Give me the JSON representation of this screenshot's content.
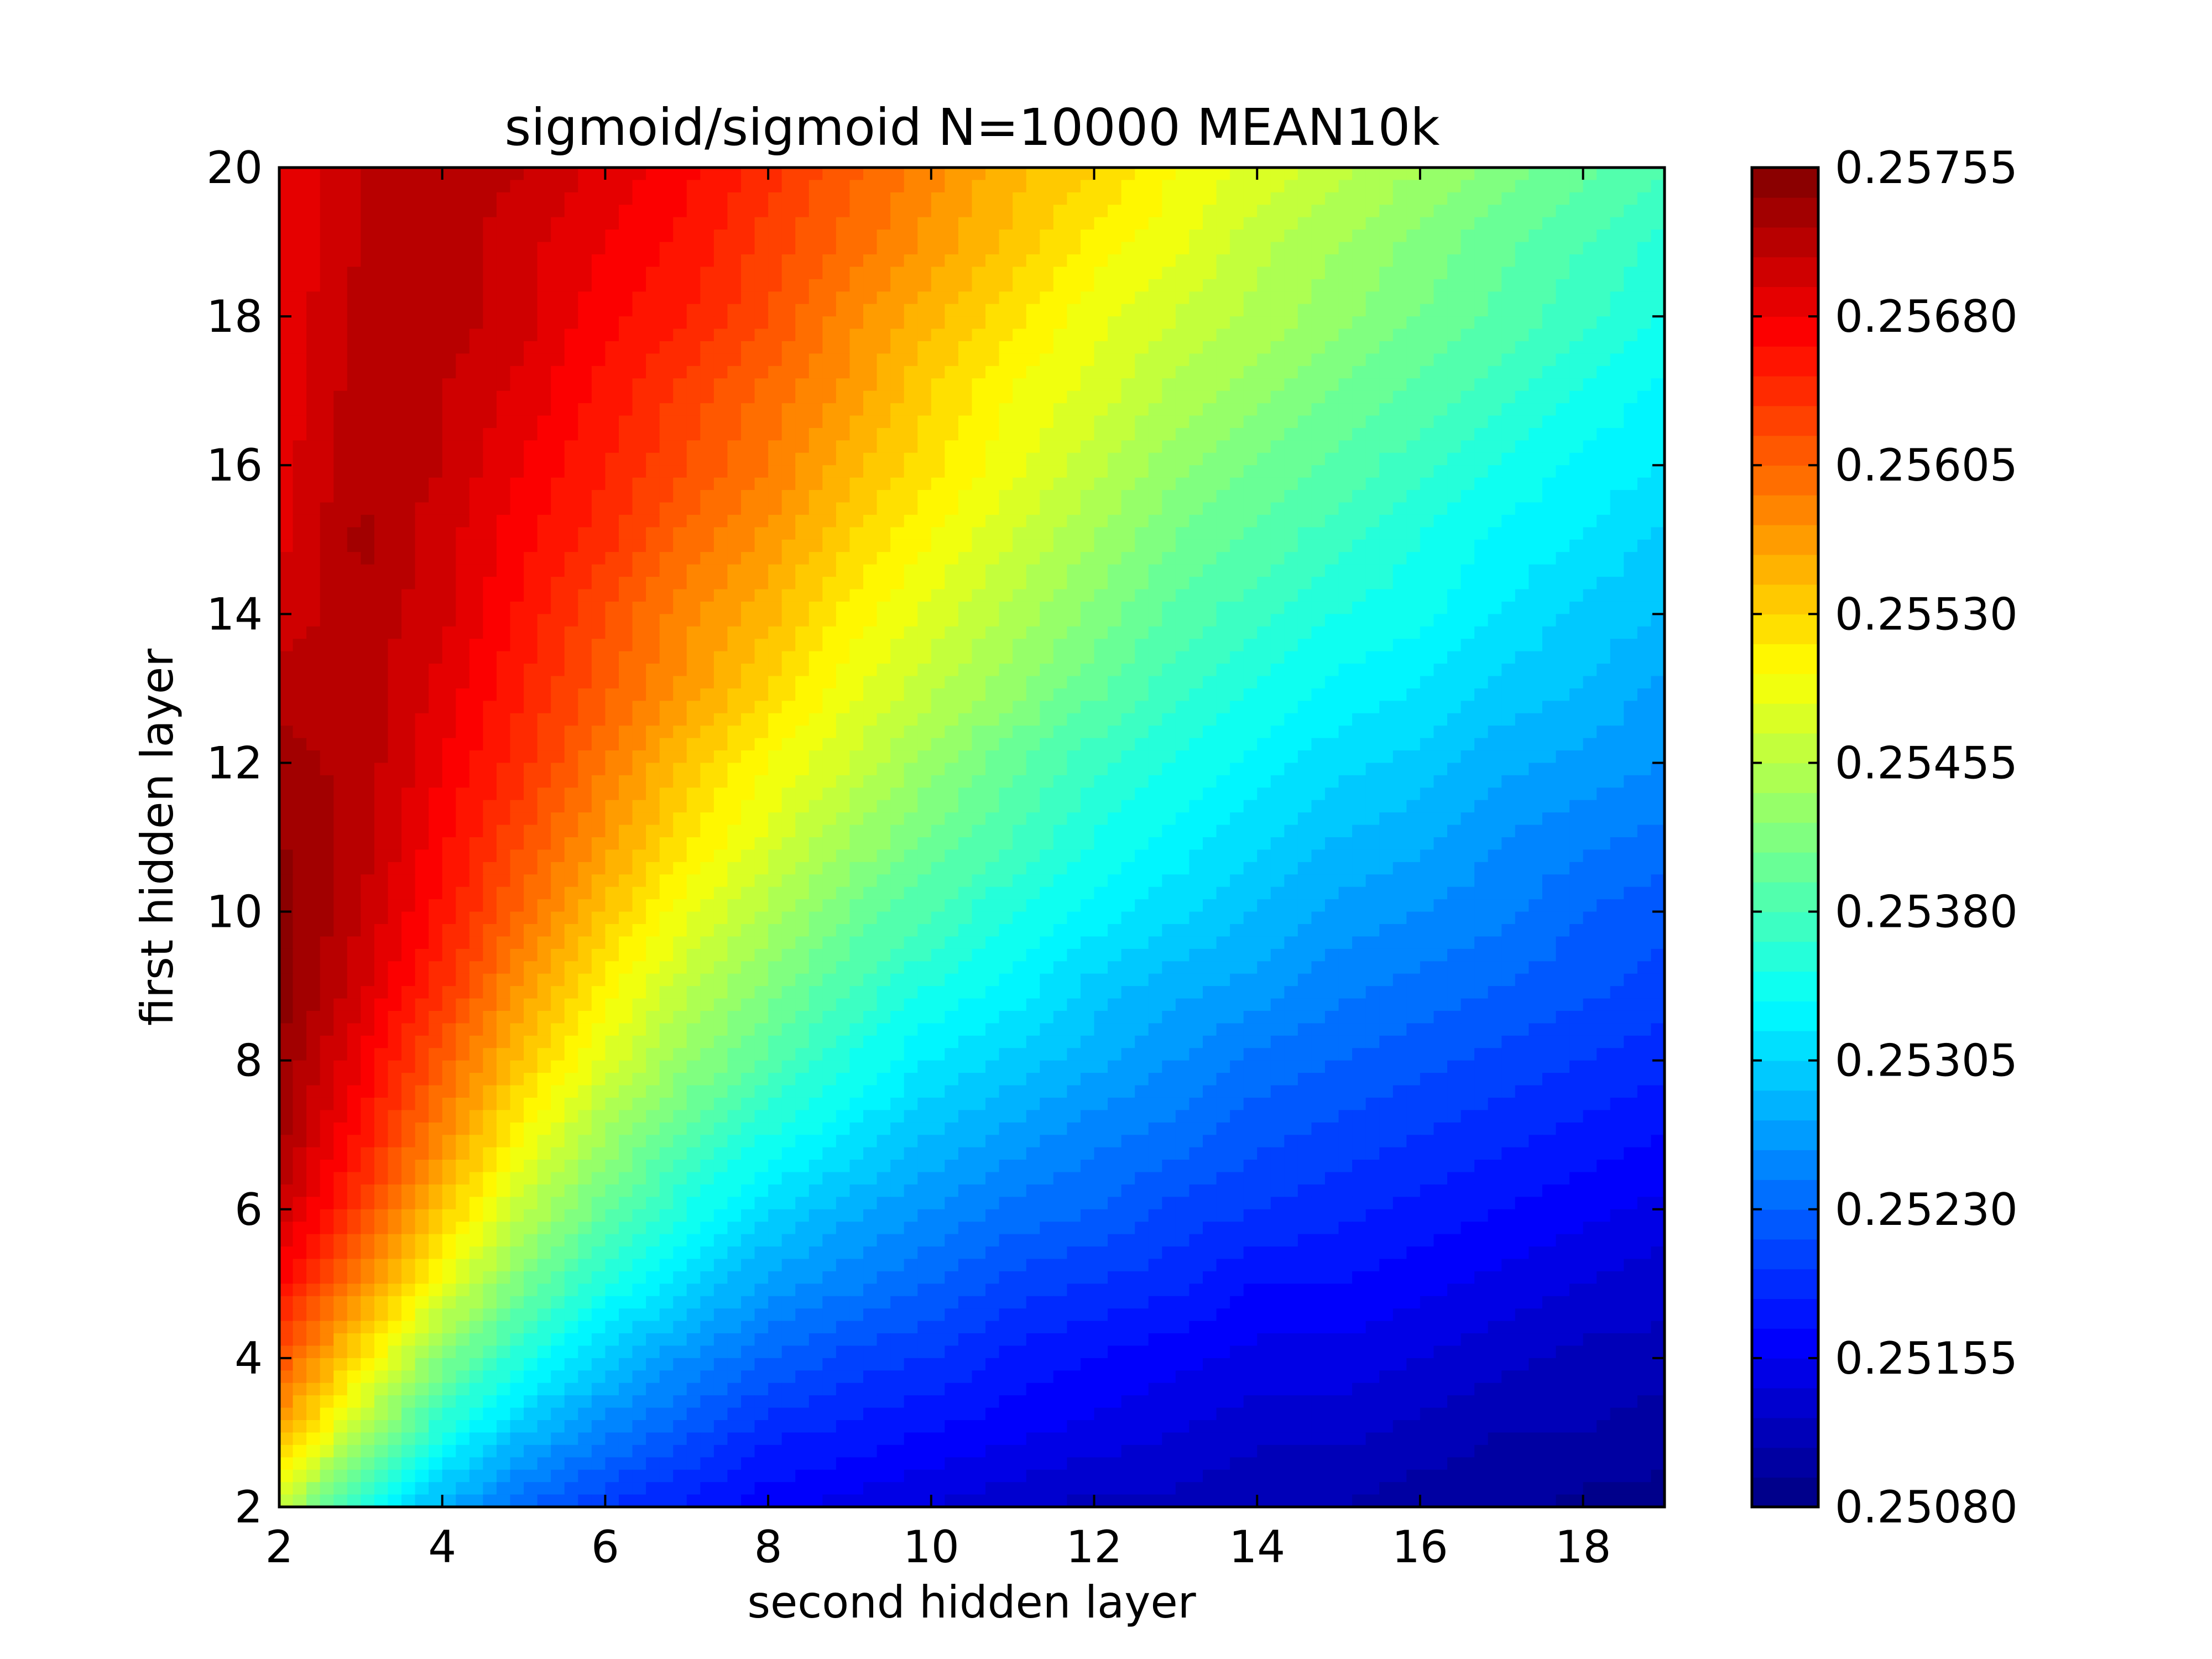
{
  "chart_data": {
    "type": "heatmap",
    "subtype": "filled-contour",
    "title": "sigmoid/sigmoid N=10000 MEAN10k",
    "xlabel": "second hidden layer",
    "ylabel": "first hidden layer",
    "xlim": [
      2,
      19
    ],
    "ylim": [
      2,
      20
    ],
    "x_ticks": [
      2,
      4,
      6,
      8,
      10,
      12,
      14,
      16,
      18
    ],
    "y_ticks": [
      2,
      4,
      6,
      8,
      10,
      12,
      14,
      16,
      18,
      20
    ],
    "x_tick_labels": [
      "2",
      "4",
      "6",
      "8",
      "10",
      "12",
      "14",
      "16",
      "18"
    ],
    "y_tick_labels": [
      "2",
      "4",
      "6",
      "8",
      "10",
      "12",
      "14",
      "16",
      "18",
      "20"
    ],
    "colorbar": {
      "min": 0.2508,
      "max": 0.25755,
      "levels": 45,
      "colormap": "jet",
      "tick_values": [
        0.2508,
        0.25155,
        0.2523,
        0.25305,
        0.2538,
        0.25455,
        0.2553,
        0.25605,
        0.2568,
        0.25755
      ],
      "tick_labels": [
        "0.25080",
        "0.25155",
        "0.25230",
        "0.25305",
        "0.25380",
        "0.25455",
        "0.25530",
        "0.25605",
        "0.25680",
        "0.25755"
      ]
    },
    "x": [
      2,
      3,
      4,
      5,
      6,
      7,
      8,
      9,
      10,
      11,
      12,
      13,
      14,
      15,
      16,
      17,
      18,
      19
    ],
    "y": [
      2,
      3,
      4,
      5,
      6,
      7,
      8,
      9,
      10,
      11,
      12,
      13,
      14,
      15,
      16,
      17,
      18,
      19,
      20
    ],
    "z_rows_by_y": [
      [
        0.2546,
        0.2535,
        0.2528,
        0.2523,
        0.252,
        0.2518,
        0.2516,
        0.2515,
        0.2514,
        0.2513,
        0.2512,
        0.2512,
        0.2511,
        0.2511,
        0.251,
        0.251,
        0.2509,
        0.2509
      ],
      [
        0.2556,
        0.2545,
        0.2535,
        0.2529,
        0.2525,
        0.2522,
        0.2519,
        0.2518,
        0.2517,
        0.2516,
        0.2515,
        0.2514,
        0.2513,
        0.2513,
        0.2512,
        0.2511,
        0.2511,
        0.251
      ],
      [
        0.2562,
        0.2552,
        0.2542,
        0.2535,
        0.253,
        0.2526,
        0.2523,
        0.2521,
        0.252,
        0.2518,
        0.2517,
        0.2516,
        0.2515,
        0.2515,
        0.2514,
        0.2513,
        0.2512,
        0.2512
      ],
      [
        0.2567,
        0.2558,
        0.2549,
        0.2541,
        0.2535,
        0.2531,
        0.2527,
        0.2525,
        0.2523,
        0.2521,
        0.252,
        0.2519,
        0.2517,
        0.2517,
        0.2516,
        0.2515,
        0.2514,
        0.2513
      ],
      [
        0.2571,
        0.2563,
        0.2554,
        0.2546,
        0.254,
        0.2535,
        0.2531,
        0.2528,
        0.2526,
        0.2524,
        0.2523,
        0.2521,
        0.252,
        0.2519,
        0.2518,
        0.2517,
        0.2516,
        0.2515
      ],
      [
        0.2573,
        0.2566,
        0.2558,
        0.255,
        0.2544,
        0.2539,
        0.2535,
        0.2532,
        0.2529,
        0.2527,
        0.2525,
        0.2524,
        0.2522,
        0.2521,
        0.252,
        0.2519,
        0.2518,
        0.2517
      ],
      [
        0.2574,
        0.2568,
        0.2561,
        0.2554,
        0.2548,
        0.2543,
        0.2539,
        0.2535,
        0.2532,
        0.253,
        0.2528,
        0.2526,
        0.2524,
        0.2523,
        0.2522,
        0.2521,
        0.252,
        0.2519
      ],
      [
        0.2575,
        0.257,
        0.2564,
        0.2557,
        0.2551,
        0.2546,
        0.2542,
        0.2538,
        0.2535,
        0.2533,
        0.253,
        0.2528,
        0.2527,
        0.2525,
        0.2524,
        0.2523,
        0.2522,
        0.2521
      ],
      [
        0.2575,
        0.2571,
        0.2566,
        0.256,
        0.2554,
        0.2549,
        0.2545,
        0.2541,
        0.2538,
        0.2535,
        0.2533,
        0.2531,
        0.2529,
        0.2527,
        0.2526,
        0.2525,
        0.2523,
        0.2522
      ],
      [
        0.2574,
        0.2572,
        0.2567,
        0.2562,
        0.2557,
        0.2552,
        0.2548,
        0.2544,
        0.2541,
        0.2538,
        0.2535,
        0.2533,
        0.2531,
        0.2529,
        0.2528,
        0.2526,
        0.2525,
        0.2524
      ],
      [
        0.2573,
        0.2572,
        0.2568,
        0.2564,
        0.2559,
        0.2554,
        0.255,
        0.2547,
        0.2543,
        0.254,
        0.2537,
        0.2535,
        0.2533,
        0.2531,
        0.253,
        0.2528,
        0.2527,
        0.2526
      ],
      [
        0.2572,
        0.2572,
        0.2569,
        0.2565,
        0.2561,
        0.2557,
        0.2553,
        0.2549,
        0.2546,
        0.2543,
        0.254,
        0.2537,
        0.2535,
        0.2533,
        0.2532,
        0.253,
        0.2529,
        0.2527
      ],
      [
        0.257,
        0.2572,
        0.257,
        0.2566,
        0.2562,
        0.2558,
        0.2555,
        0.2551,
        0.2548,
        0.2545,
        0.2542,
        0.2539,
        0.2537,
        0.2535,
        0.2534,
        0.2532,
        0.253,
        0.2529
      ],
      [
        0.2569,
        0.2573,
        0.257,
        0.2567,
        0.2564,
        0.256,
        0.2557,
        0.2553,
        0.255,
        0.2547,
        0.2544,
        0.2541,
        0.2539,
        0.2537,
        0.2535,
        0.2533,
        0.2532,
        0.253
      ],
      [
        0.2569,
        0.2572,
        0.2571,
        0.2568,
        0.2565,
        0.2562,
        0.2559,
        0.2555,
        0.2552,
        0.2549,
        0.2546,
        0.2543,
        0.2541,
        0.2539,
        0.2537,
        0.2535,
        0.2533,
        0.2532
      ],
      [
        0.2568,
        0.2572,
        0.2571,
        0.2569,
        0.2566,
        0.2563,
        0.256,
        0.2557,
        0.2553,
        0.255,
        0.2548,
        0.2545,
        0.2543,
        0.2541,
        0.2539,
        0.2537,
        0.2535,
        0.2533
      ],
      [
        0.2568,
        0.2572,
        0.2572,
        0.257,
        0.2567,
        0.2565,
        0.2562,
        0.2558,
        0.2555,
        0.2552,
        0.2549,
        0.2547,
        0.2545,
        0.2543,
        0.2541,
        0.2539,
        0.2537,
        0.2535
      ],
      [
        0.2568,
        0.2571,
        0.2572,
        0.257,
        0.2568,
        0.2566,
        0.2563,
        0.256,
        0.2557,
        0.2554,
        0.2551,
        0.2549,
        0.2546,
        0.2544,
        0.2542,
        0.254,
        0.2538,
        0.2536
      ],
      [
        0.2568,
        0.2571,
        0.2572,
        0.2571,
        0.2569,
        0.2567,
        0.2564,
        0.2561,
        0.2558,
        0.2555,
        0.2553,
        0.255,
        0.2548,
        0.2546,
        0.2544,
        0.2542,
        0.254,
        0.2538
      ]
    ]
  }
}
